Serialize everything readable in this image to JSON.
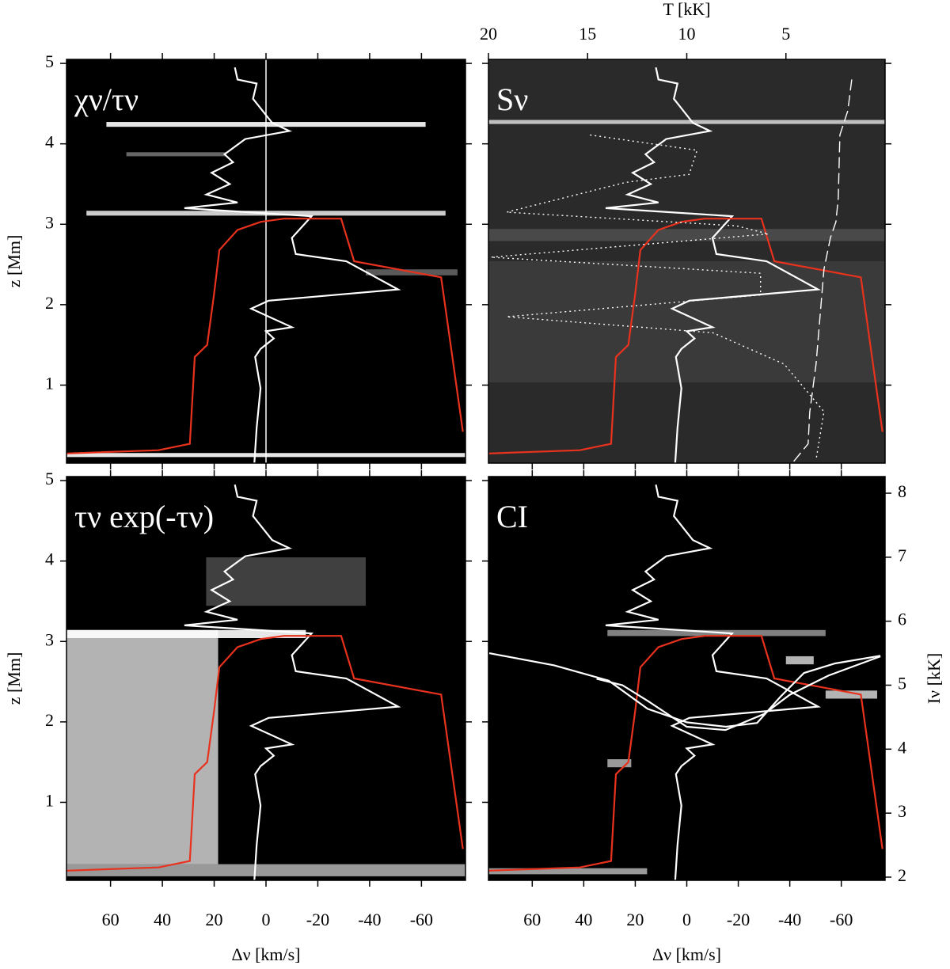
{
  "chart_data": [
    {
      "type": "heatmap-lines",
      "label": "χν/τν",
      "ylabel": "z [Mm]",
      "xlim": [
        77,
        -77
      ],
      "ylim": [
        0.03,
        5.05
      ],
      "xticks": [
        60,
        40,
        20,
        0,
        -20,
        -40,
        -60
      ],
      "yticks": [
        1,
        2,
        3,
        4,
        5
      ],
      "x_labels": false,
      "y_labels": true,
      "vline": 0,
      "series": [
        {
          "color": "#ffffff",
          "x": [
            4.5,
            3.6,
            2.1,
            4.2,
            2.1,
            -3,
            0,
            -10,
            5.7,
            -1,
            -51,
            -31,
            -11.5,
            -10,
            -17.6,
            31.5,
            11,
            23,
            14,
            21,
            12.7,
            16,
            8,
            -9,
            -2.4,
            5,
            3.6,
            11,
            12
          ],
          "y": [
            0.03,
            0.47,
            0.96,
            1.35,
            1.45,
            1.58,
            1.67,
            1.72,
            1.95,
            2.05,
            2.19,
            2.54,
            2.63,
            2.83,
            3.1,
            3.2,
            3.27,
            3.37,
            3.5,
            3.64,
            3.77,
            3.87,
            4.06,
            4.16,
            4.26,
            4.56,
            4.75,
            4.8,
            4.95
          ]
        },
        {
          "color": "#e8321e",
          "x": [
            77,
            41.5,
            29.4,
            27.5,
            22.7,
            20,
            18,
            11,
            2,
            -7,
            -29,
            -34,
            -67.6,
            -76
          ],
          "y": [
            0.15,
            0.19,
            0.27,
            1.35,
            1.5,
            2.14,
            2.68,
            2.93,
            3.03,
            3.07,
            3.07,
            2.54,
            2.34,
            0.42
          ]
        }
      ]
    },
    {
      "type": "heatmap-lines",
      "label": "Sν",
      "x2label": "T [kK]",
      "xlim": [
        77,
        -77
      ],
      "ylim": [
        0.03,
        5.05
      ],
      "xticks": [
        60,
        40,
        20,
        0,
        -20,
        -40,
        -60
      ],
      "yticks": [
        1,
        2,
        3,
        4,
        5
      ],
      "x2lim": [
        20,
        0
      ],
      "x2ticks": [
        20,
        15,
        10,
        5
      ],
      "x_labels": false,
      "y_labels": false,
      "series": [
        {
          "color": "#ffffff",
          "x": [
            4.5,
            3.6,
            2.1,
            4.2,
            2.1,
            -3,
            0,
            -10,
            5.7,
            -1,
            -51,
            -31,
            -11.5,
            -10,
            -17.6,
            31.5,
            11,
            23,
            14,
            21,
            12.7,
            16,
            8,
            -9,
            -2.4,
            5,
            3.6,
            11,
            12
          ],
          "y": [
            0.03,
            0.47,
            0.96,
            1.35,
            1.45,
            1.58,
            1.67,
            1.72,
            1.95,
            2.05,
            2.19,
            2.54,
            2.63,
            2.83,
            3.1,
            3.2,
            3.27,
            3.37,
            3.5,
            3.64,
            3.77,
            3.87,
            4.06,
            4.16,
            4.26,
            4.56,
            4.75,
            4.8,
            4.95
          ]
        },
        {
          "color": "#e8321e",
          "x": [
            77,
            41.5,
            29.4,
            27.5,
            22.7,
            20,
            18,
            11,
            2,
            -7,
            -29,
            -34,
            -67.6,
            -76
          ],
          "y": [
            0.15,
            0.19,
            0.27,
            1.35,
            1.5,
            2.14,
            2.68,
            2.93,
            3.03,
            3.07,
            3.07,
            2.54,
            2.34,
            0.42
          ]
        },
        {
          "color": "#ffffff",
          "axis": "x2",
          "dash": "dashed",
          "x": [
            1.68,
            1.88,
            2.28,
            2.36,
            2.48,
            2.76,
            3.08,
            3.28,
            3.48,
            3.8,
            3.88,
            4.68
          ],
          "y": [
            4.8,
            4.41,
            4.11,
            3.33,
            3.03,
            2.83,
            2.44,
            1.85,
            1.26,
            0.66,
            0.27,
            0.03
          ]
        },
        {
          "color": "#ffffff",
          "axis": "x2",
          "dash": "dotted",
          "x": [
            14.88,
            9.48,
            9.88,
            13.08,
            19.08,
            7.48,
            5.88,
            19.88,
            6.28,
            6.28,
            19.08,
            8.68,
            5.08,
            3.08,
            3.48
          ],
          "y": [
            4.11,
            3.92,
            3.62,
            3.52,
            3.15,
            2.98,
            2.88,
            2.59,
            2.39,
            2.12,
            1.85,
            1.65,
            1.26,
            0.67,
            0.07
          ]
        }
      ]
    },
    {
      "type": "heatmap-lines",
      "label": "τν exp(-τν)",
      "ylabel": "z [Mm]",
      "xlabel": "Δν [km/s]",
      "xlim": [
        77,
        -77
      ],
      "ylim": [
        0.03,
        5.05
      ],
      "xticks": [
        60,
        40,
        20,
        0,
        -20,
        -40,
        -60
      ],
      "yticks": [
        1,
        2,
        3,
        4,
        5
      ],
      "x_labels": true,
      "y_labels": true,
      "series": [
        {
          "color": "#ffffff",
          "x": [
            4.5,
            3.6,
            2.1,
            4.2,
            2.1,
            -3,
            0,
            -10,
            5.7,
            -1,
            -51,
            -31,
            -11.5,
            -10,
            -17.6,
            31.5,
            11,
            23,
            14,
            21,
            12.7,
            16,
            8,
            -9,
            -2.4,
            5,
            3.6,
            11,
            12
          ],
          "y": [
            0.03,
            0.47,
            0.96,
            1.35,
            1.45,
            1.58,
            1.67,
            1.72,
            1.95,
            2.05,
            2.19,
            2.54,
            2.63,
            2.83,
            3.1,
            3.2,
            3.27,
            3.37,
            3.5,
            3.64,
            3.77,
            3.87,
            4.06,
            4.16,
            4.26,
            4.56,
            4.75,
            4.8,
            4.95
          ]
        },
        {
          "color": "#e8321e",
          "x": [
            77,
            41.5,
            29.4,
            27.5,
            22.7,
            20,
            18,
            11,
            2,
            -7,
            -29,
            -34,
            -67.6,
            -76
          ],
          "y": [
            0.15,
            0.19,
            0.27,
            1.35,
            1.5,
            2.14,
            2.68,
            2.93,
            3.03,
            3.07,
            3.07,
            2.54,
            2.34,
            0.42
          ]
        }
      ]
    },
    {
      "type": "heatmap-lines",
      "label": "CI",
      "xlabel": "Δν [km/s]",
      "y2label": "Iν [kK]",
      "xlim": [
        77,
        -77
      ],
      "ylim": [
        0.03,
        5.05
      ],
      "xticks": [
        60,
        40,
        20,
        0,
        -20,
        -40,
        -60
      ],
      "yticks": [
        1,
        2,
        3,
        4,
        5
      ],
      "y2lim": [
        1.95,
        8.26
      ],
      "y2ticks": [
        2,
        3,
        4,
        5,
        6,
        7,
        8
      ],
      "x_labels": true,
      "y_labels": false,
      "series": [
        {
          "color": "#ffffff",
          "x": [
            4.5,
            3.6,
            2.1,
            4.2,
            2.1,
            -3,
            0,
            -10,
            5.7,
            -1,
            -51,
            -31,
            -11.5,
            -10,
            -17.6,
            31.5,
            11,
            23,
            14,
            21,
            12.7,
            16,
            8,
            -9,
            -2.4,
            5,
            3.6,
            11,
            12
          ],
          "y": [
            0.03,
            0.47,
            0.96,
            1.35,
            1.45,
            1.58,
            1.67,
            1.72,
            1.95,
            2.05,
            2.19,
            2.54,
            2.63,
            2.83,
            3.1,
            3.2,
            3.27,
            3.37,
            3.5,
            3.64,
            3.77,
            3.87,
            4.06,
            4.16,
            4.26,
            4.56,
            4.75,
            4.8,
            4.95
          ]
        },
        {
          "color": "#e8321e",
          "x": [
            77,
            41.5,
            29.4,
            27.5,
            22.7,
            20,
            18,
            11,
            2,
            -7,
            -29,
            -34,
            -67.6,
            -76
          ],
          "y": [
            0.15,
            0.19,
            0.27,
            1.35,
            1.5,
            2.14,
            2.68,
            2.93,
            3.03,
            3.07,
            3.07,
            2.54,
            2.34,
            0.42
          ]
        },
        {
          "color": "#ffffff",
          "axis": "y2",
          "x": [
            76.7,
            51.5,
            30.3,
            15.2,
            0,
            -15.2,
            -27.3,
            -36.4,
            -45.5,
            -57.6,
            -75.2
          ],
          "y": [
            5.5,
            5.31,
            5.07,
            4.63,
            4.42,
            4.35,
            4.41,
            4.82,
            5.19,
            5.34,
            5.46
          ]
        },
        {
          "color": "#ffffff",
          "axis": "y2",
          "x": [
            -75.2,
            -55,
            -40,
            -30,
            -15,
            0,
            15,
            25,
            35
          ],
          "y": [
            5.45,
            5.15,
            4.85,
            4.55,
            4.3,
            4.35,
            4.75,
            5.0,
            5.1
          ]
        }
      ]
    }
  ]
}
